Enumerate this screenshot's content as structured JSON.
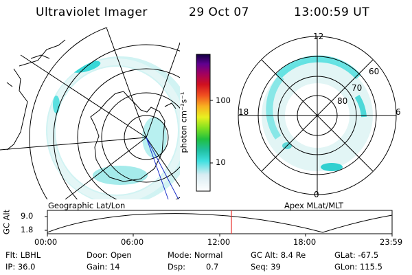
{
  "header": {
    "instrument": "Ultraviolet Imager",
    "date": "29 Oct 07",
    "time": "13:00:59 UT"
  },
  "colorbar": {
    "unit_label": "photon cm⁻²s⁻¹",
    "ticks": [
      "100",
      "10"
    ]
  },
  "left_panel": {
    "caption": "Geographic Lat/Lon"
  },
  "right_panel": {
    "caption": "Apex MLat/MLT",
    "mlt_labels": {
      "top": "12",
      "bottom": "0",
      "left": "18",
      "right": "6"
    },
    "lat_labels": [
      "60",
      "70",
      "80"
    ]
  },
  "orbit": {
    "axis_label": "GC Alt",
    "y_ticks": [
      "9.0",
      "1.8"
    ],
    "x_ticks": [
      "00:00",
      "06:00",
      "12:00",
      "18:00",
      "23:59"
    ],
    "marker_color": "#e8302c"
  },
  "info": {
    "row1": {
      "flt": "Flt: LBHL",
      "door": "Door: Open",
      "mode": "Mode: Normal",
      "gc_alt": "GC Alt: 8.4 Re",
      "glat": "GLat: -67.5"
    },
    "row2": {
      "ip": "IP: 36.0",
      "gain": "Gain: 14",
      "dsp_label": "Dsp:",
      "dsp_val": "0.7",
      "seq": "Seq: 39",
      "glon": "GLon: 115.5"
    }
  }
}
